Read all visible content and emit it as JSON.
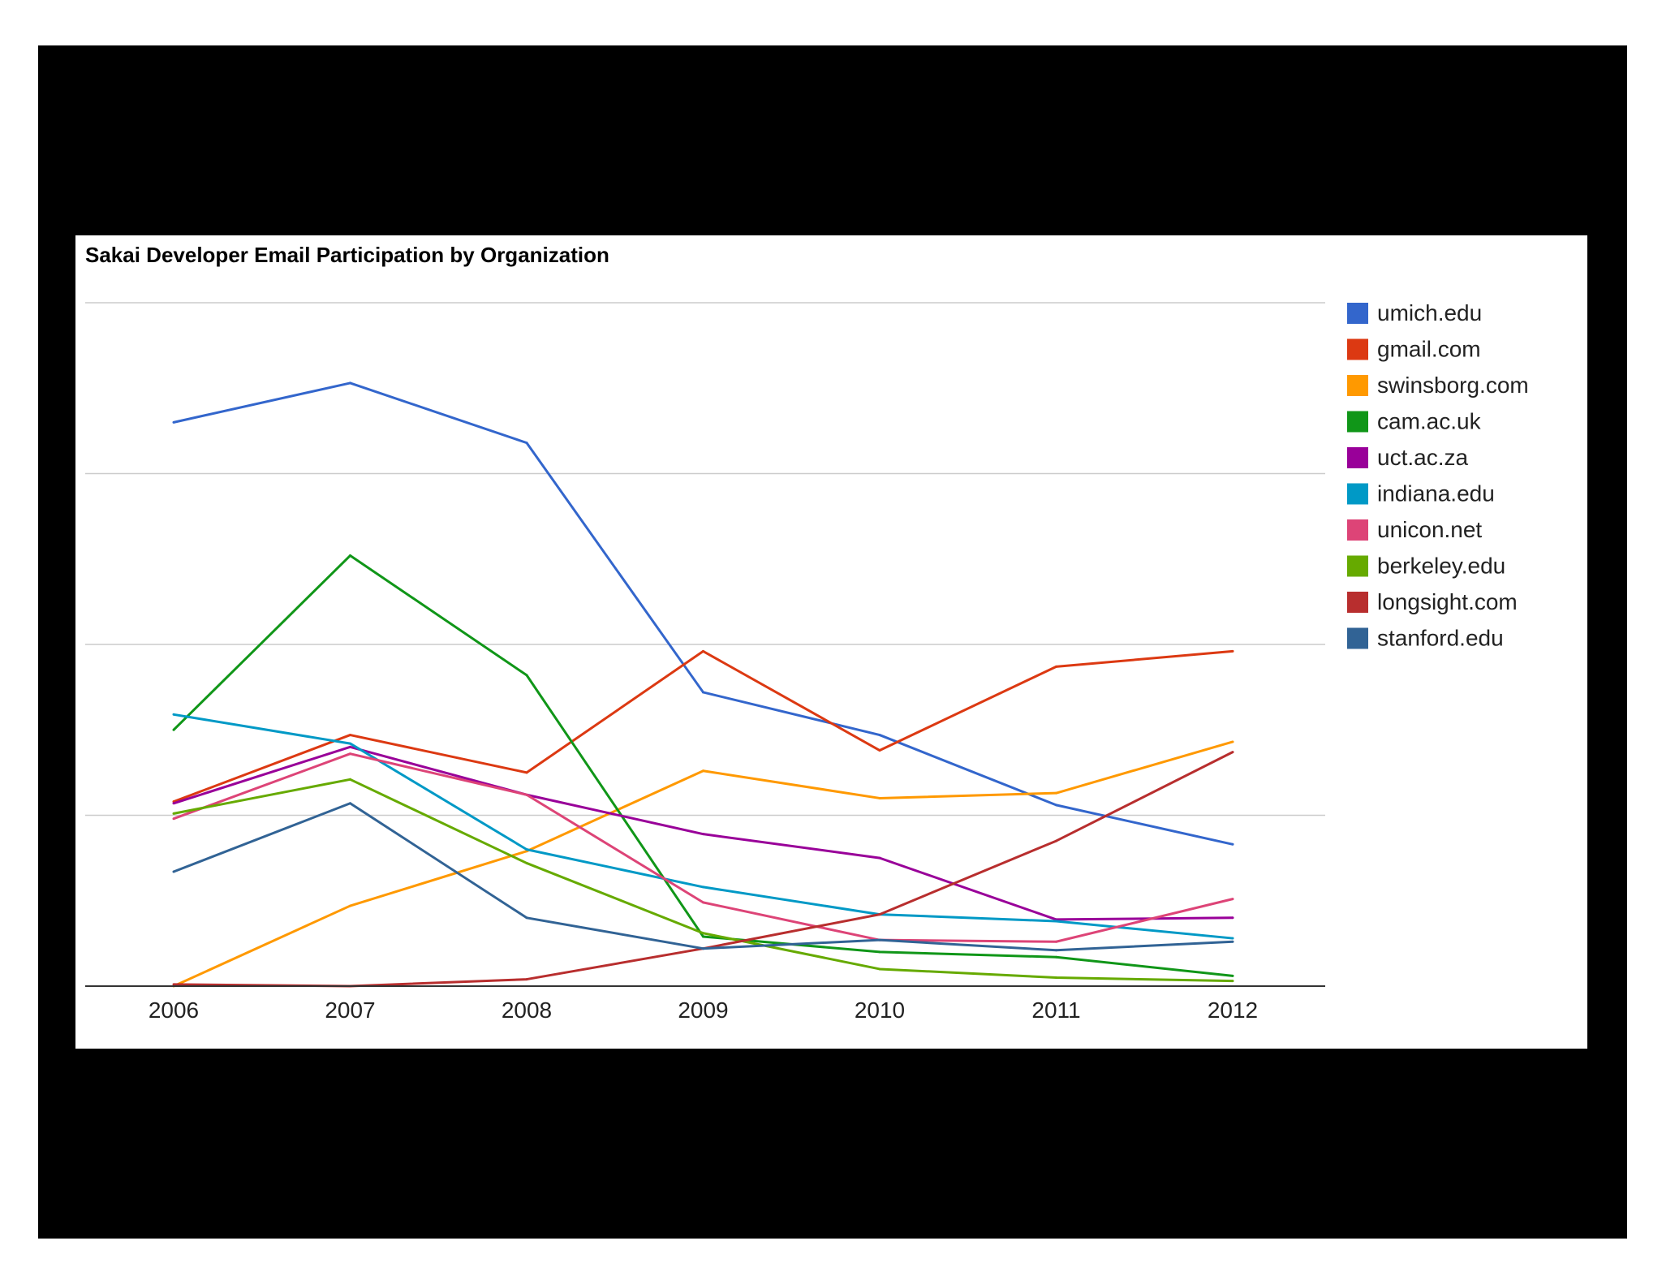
{
  "chart_data": {
    "type": "line",
    "title": "Sakai Developer Email Participation by Organization",
    "xlabel": "",
    "ylabel": "",
    "x": [
      "2006",
      "2007",
      "2008",
      "2009",
      "2010",
      "2011",
      "2012"
    ],
    "ylim": [
      0,
      4
    ],
    "grid": true,
    "legend_position": "right",
    "series": [
      {
        "name": "umich.edu",
        "color": "#3366cc",
        "values": [
          3.3,
          3.53,
          3.18,
          1.72,
          1.47,
          1.06,
          0.83
        ]
      },
      {
        "name": "gmail.com",
        "color": "#dc3912",
        "values": [
          1.08,
          1.47,
          1.25,
          1.96,
          1.38,
          1.87,
          1.96
        ]
      },
      {
        "name": "swinsborg.com",
        "color": "#ff9900",
        "values": [
          0.0,
          0.47,
          0.79,
          1.26,
          1.1,
          1.13,
          1.43
        ]
      },
      {
        "name": "cam.ac.uk",
        "color": "#109618",
        "values": [
          1.5,
          2.52,
          1.82,
          0.29,
          0.2,
          0.17,
          0.06
        ]
      },
      {
        "name": "uct.ac.za",
        "color": "#990099",
        "values": [
          1.07,
          1.4,
          1.12,
          0.89,
          0.75,
          0.39,
          0.4
        ]
      },
      {
        "name": "indiana.edu",
        "color": "#0099c6",
        "values": [
          1.59,
          1.42,
          0.8,
          0.58,
          0.42,
          0.38,
          0.28
        ]
      },
      {
        "name": "unicon.net",
        "color": "#dd4477",
        "values": [
          0.98,
          1.36,
          1.12,
          0.49,
          0.27,
          0.26,
          0.51
        ]
      },
      {
        "name": "berkeley.edu",
        "color": "#66aa00",
        "values": [
          1.01,
          1.21,
          0.72,
          0.31,
          0.1,
          0.05,
          0.03
        ]
      },
      {
        "name": "longsight.com",
        "color": "#b82e2e",
        "values": [
          0.01,
          0.0,
          0.04,
          0.22,
          0.42,
          0.85,
          1.37
        ]
      },
      {
        "name": "stanford.edu",
        "color": "#316395",
        "values": [
          0.67,
          1.07,
          0.4,
          0.22,
          0.27,
          0.21,
          0.26
        ]
      }
    ]
  }
}
